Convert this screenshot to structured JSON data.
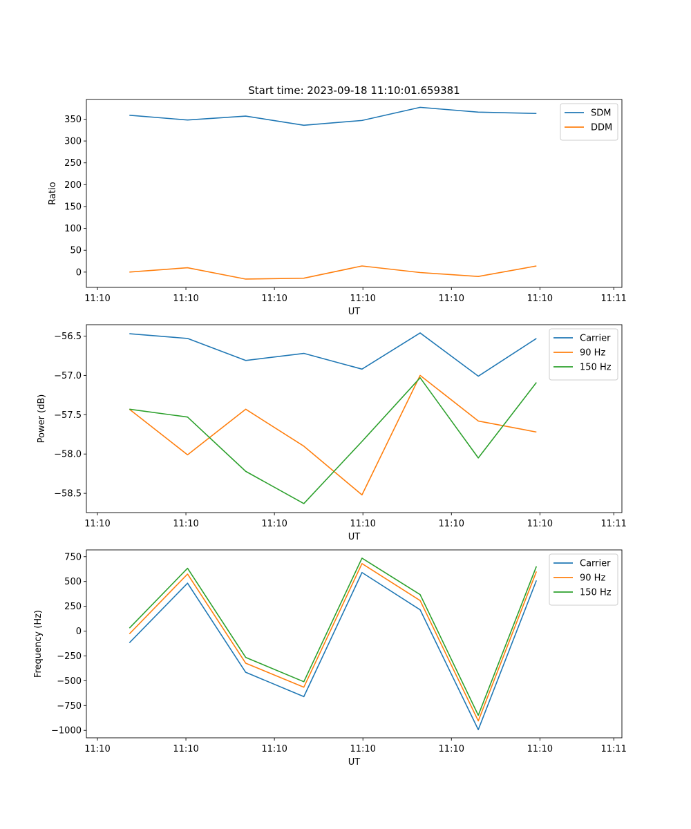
{
  "title": "Start time: 2023-09-18 11:10:01.659381",
  "x_tick_labels": [
    "11:10",
    "11:10",
    "11:10",
    "11:10",
    "11:10",
    "11:10",
    "11:11"
  ],
  "chart_data": [
    {
      "type": "line",
      "title": "Start time: 2023-09-18 11:10:01.659381",
      "xlabel": "UT",
      "ylabel": "Ratio",
      "x": [
        1,
        2,
        3,
        4,
        5,
        6,
        7,
        8
      ],
      "xlim": [
        0.26,
        9.47
      ],
      "ylim": [
        -35,
        395
      ],
      "yticks": [
        0,
        50,
        100,
        150,
        200,
        250,
        300,
        350
      ],
      "ytick_labels": [
        "0",
        "50",
        "100",
        "150",
        "200",
        "250",
        "300",
        "350"
      ],
      "legend": "top-right",
      "series": [
        {
          "name": "SDM",
          "color": "#1f77b4",
          "values": [
            359,
            348,
            357,
            336,
            347,
            377,
            366,
            363
          ]
        },
        {
          "name": "DDM",
          "color": "#ff7f0e",
          "values": [
            0,
            10,
            -16,
            -14,
            14,
            -1,
            -10,
            14
          ]
        }
      ]
    },
    {
      "type": "line",
      "xlabel": "UT",
      "ylabel": "Power (dB)",
      "x": [
        1,
        2,
        3,
        4,
        5,
        6,
        7,
        8
      ],
      "xlim": [
        0.26,
        9.47
      ],
      "ylim": [
        -58.745,
        -56.355
      ],
      "yticks": [
        -58.5,
        -58.0,
        -57.5,
        -57.0,
        -56.5
      ],
      "ytick_labels": [
        "−58.5",
        "−58.0",
        "−57.5",
        "−57.0",
        "−56.5"
      ],
      "legend": "top-right",
      "series": [
        {
          "name": "Carrier",
          "color": "#1f77b4",
          "values": [
            -56.47,
            -56.53,
            -56.81,
            -56.72,
            -56.92,
            -56.46,
            -57.01,
            -56.53
          ]
        },
        {
          "name": "90 Hz",
          "color": "#ff7f0e",
          "values": [
            -57.43,
            -58.01,
            -57.43,
            -57.9,
            -58.52,
            -57.0,
            -57.58,
            -57.72
          ]
        },
        {
          "name": "150 Hz",
          "color": "#2ca02c",
          "values": [
            -57.43,
            -57.53,
            -58.22,
            -58.63,
            -57.84,
            -57.03,
            -58.05,
            -57.09
          ]
        }
      ]
    },
    {
      "type": "line",
      "xlabel": "UT",
      "ylabel": "Frequency (Hz)",
      "x": [
        1,
        2,
        3,
        4,
        5,
        6,
        7,
        8
      ],
      "xlim": [
        0.26,
        9.47
      ],
      "ylim": [
        -1075,
        818
      ],
      "yticks": [
        -1000,
        -750,
        -500,
        -250,
        0,
        250,
        500,
        750
      ],
      "ytick_labels": [
        "−1000",
        "−750",
        "−500",
        "−250",
        "0",
        "250",
        "500",
        "750"
      ],
      "legend": "top-right",
      "series": [
        {
          "name": "Carrier",
          "color": "#1f77b4",
          "values": [
            -118,
            483,
            -415,
            -660,
            590,
            215,
            -993,
            510
          ]
        },
        {
          "name": "90 Hz",
          "color": "#ff7f0e",
          "values": [
            -28,
            575,
            -323,
            -565,
            680,
            308,
            -905,
            600
          ]
        },
        {
          "name": "150 Hz",
          "color": "#2ca02c",
          "values": [
            30,
            633,
            -265,
            -510,
            735,
            368,
            -848,
            652
          ]
        }
      ]
    }
  ]
}
